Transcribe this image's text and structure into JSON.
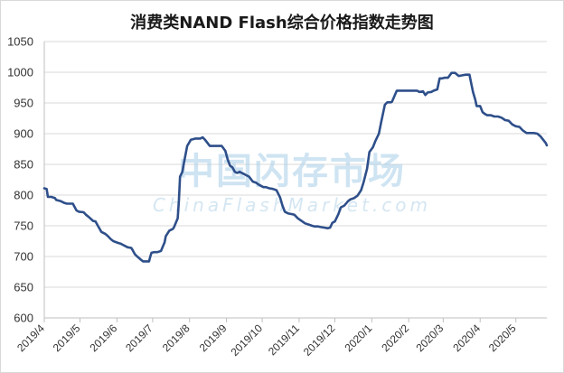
{
  "chart_data": {
    "type": "line",
    "title": "消费类NAND Flash综合价格指数走势图",
    "watermark": {
      "cn": "中国闪存市场",
      "en": "ChinaFlashMarket.com"
    },
    "ylim": [
      600,
      1050
    ],
    "yticks": [
      600,
      650,
      700,
      750,
      800,
      850,
      900,
      950,
      1000,
      1050
    ],
    "xticks": [
      {
        "label": "2019/4",
        "x": 0
      },
      {
        "label": "2019/5",
        "x": 30
      },
      {
        "label": "2019/6",
        "x": 61
      },
      {
        "label": "2019/7",
        "x": 91
      },
      {
        "label": "2019/8",
        "x": 122
      },
      {
        "label": "2019/9",
        "x": 153
      },
      {
        "label": "2019/10",
        "x": 183
      },
      {
        "label": "2019/11",
        "x": 214
      },
      {
        "label": "2019/12",
        "x": 244
      },
      {
        "label": "2020/1",
        "x": 275
      },
      {
        "label": "2020/2",
        "x": 306
      },
      {
        "label": "2020/3",
        "x": 335
      },
      {
        "label": "2020/4",
        "x": 366
      },
      {
        "label": "2020/5",
        "x": 396
      }
    ],
    "xlim": [
      0,
      422
    ],
    "grid": true,
    "line_color": "#2e4f8a",
    "series": [
      {
        "x": [
          0,
          2,
          3,
          6,
          9,
          10,
          14,
          17,
          19,
          22,
          24,
          27,
          29,
          33,
          35,
          37,
          41,
          43,
          45,
          48,
          51,
          53,
          56,
          58,
          62,
          64,
          65,
          70,
          73,
          74,
          76,
          78,
          81,
          83,
          85,
          88,
          89,
          90,
          92,
          94,
          95,
          98,
          101,
          102,
          105,
          108,
          109,
          112,
          113,
          114,
          116,
          117,
          120,
          123,
          125,
          127,
          131,
          133,
          135,
          137,
          139,
          142,
          144,
          147,
          149,
          152,
          154,
          156,
          158,
          160,
          162,
          164,
          167,
          169,
          172,
          175,
          178,
          180,
          182,
          184,
          186,
          189,
          192,
          195,
          198,
          200,
          202,
          205,
          208,
          210,
          213,
          216,
          219,
          222,
          225,
          227,
          230,
          232,
          235,
          238,
          240,
          242,
          244,
          247,
          249,
          252,
          255,
          257,
          260,
          263,
          266,
          268,
          271,
          273,
          276,
          278,
          281,
          283,
          286,
          288,
          291,
          292,
          296,
          299,
          302,
          305,
          308,
          311,
          313,
          315,
          318,
          320,
          322,
          325,
          327,
          330,
          332,
          334,
          336,
          339,
          342,
          345,
          348,
          351,
          354,
          357,
          360,
          362,
          363,
          366,
          368,
          370,
          372,
          375,
          378,
          381,
          384,
          387,
          390,
          393,
          396,
          399,
          402,
          405,
          408,
          411,
          414,
          417,
          419,
          421,
          422
        ],
        "values": [
          811,
          810,
          797,
          797,
          795,
          792,
          790,
          787,
          786,
          786,
          786,
          775,
          773,
          772,
          768,
          765,
          758,
          757,
          750,
          740,
          737,
          734,
          728,
          725,
          722,
          721,
          720,
          715,
          714,
          711,
          704,
          700,
          695,
          692,
          692,
          692,
          700,
          706,
          707,
          707,
          707,
          709,
          723,
          733,
          742,
          745,
          748,
          762,
          790,
          830,
          838,
          850,
          880,
          890,
          891,
          892,
          892,
          894,
          890,
          885,
          880,
          880,
          880,
          880,
          880,
          872,
          858,
          848,
          845,
          838,
          836,
          838,
          835,
          833,
          830,
          822,
          820,
          817,
          815,
          813,
          813,
          811,
          810,
          808,
          796,
          783,
          773,
          770,
          769,
          768,
          762,
          758,
          754,
          752,
          750,
          749,
          749,
          748,
          747,
          746,
          747,
          755,
          757,
          769,
          780,
          783,
          790,
          793,
          795,
          799,
          808,
          820,
          843,
          870,
          878,
          888,
          900,
          920,
          947,
          951,
          951,
          952,
          970,
          970,
          970,
          970,
          970,
          970,
          970,
          968,
          969,
          963,
          967,
          968,
          970,
          972,
          990,
          990,
          991,
          991,
          999,
          999,
          994,
          995,
          996,
          996,
          968,
          955,
          945,
          945,
          935,
          932,
          930,
          930,
          928,
          928,
          926,
          922,
          921,
          915,
          912,
          911,
          905,
          901,
          901,
          901,
          900,
          895,
          890,
          885,
          881
        ]
      }
    ]
  }
}
